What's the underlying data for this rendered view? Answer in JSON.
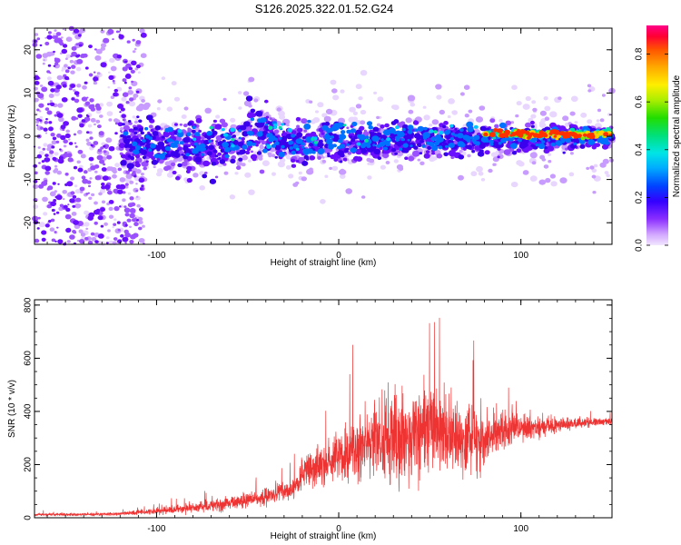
{
  "title": "S126.2025.322.01.52.G24",
  "chart_data": [
    {
      "type": "heatmap",
      "name": "spectrogram",
      "xlabel": "Height of straight line (km)",
      "ylabel": "Frequency (Hz)",
      "xlim": [
        -167,
        150
      ],
      "ylim": [
        -25,
        25
      ],
      "xticks": [
        -100,
        0,
        100
      ],
      "yticks": [
        -20,
        -10,
        0,
        10,
        20
      ],
      "colorbar": {
        "label": "Normalized spectral amplitude",
        "range": [
          0,
          0.92
        ],
        "ticks": [
          "0.0",
          "0.2",
          "0.4",
          "0.6",
          "0.8"
        ]
      },
      "description_regions": [
        {
          "x_range": [
            -167,
            -110
          ],
          "freq_range": [
            -25,
            25
          ],
          "amplitude": "low, scattered"
        },
        {
          "x_range": [
            -110,
            -40
          ],
          "freq_range": [
            -15,
            8
          ],
          "amplitude": "moderate"
        },
        {
          "x_range": [
            -40,
            80
          ],
          "freq_range": [
            -10,
            8
          ],
          "amplitude": "moderate, line near 0 Hz"
        },
        {
          "x_range": [
            80,
            150
          ],
          "freq_range": [
            -5,
            4
          ],
          "amplitude": "high, narrowing to ~1 Hz"
        }
      ]
    },
    {
      "type": "line",
      "name": "snr",
      "xlabel": "Height of straight line (km)",
      "ylabel": "SNR (10 * v/v)",
      "xlim": [
        -167,
        150
      ],
      "ylim": [
        0,
        820
      ],
      "xticks": [
        -100,
        0,
        100
      ],
      "yticks": [
        0,
        200,
        400,
        600,
        800
      ],
      "color": "#ee3333",
      "envelope_x": [
        -167,
        -140,
        -120,
        -100,
        -80,
        -60,
        -40,
        -25,
        -20,
        -10,
        0,
        10,
        20,
        30,
        40,
        50,
        60,
        70,
        80,
        90,
        100,
        110,
        120,
        130,
        140,
        150
      ],
      "envelope_mean": [
        12,
        12,
        15,
        25,
        40,
        55,
        80,
        110,
        160,
        200,
        230,
        260,
        290,
        300,
        310,
        320,
        320,
        310,
        300,
        330,
        340,
        340,
        350,
        355,
        360,
        365
      ],
      "envelope_spread": [
        8,
        8,
        10,
        20,
        30,
        40,
        45,
        60,
        90,
        120,
        150,
        200,
        230,
        260,
        280,
        260,
        240,
        220,
        170,
        120,
        80,
        60,
        45,
        35,
        25,
        20
      ]
    }
  ]
}
